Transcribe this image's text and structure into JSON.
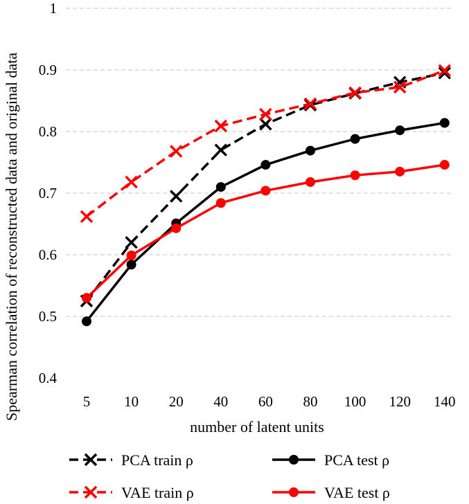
{
  "chart_data": {
    "type": "line",
    "title": "",
    "xlabel": "number of latent units",
    "ylabel": "Spearman correlation of reconstructed data and original data",
    "categories": [
      "5",
      "10",
      "20",
      "40",
      "60",
      "80",
      "100",
      "120",
      "140"
    ],
    "ylim": [
      0.4,
      1.0
    ],
    "yticks": [
      "0.4",
      "0.5",
      "0.6",
      "0.7",
      "0.8",
      "0.9",
      "1"
    ],
    "grid": true,
    "legend_position": "bottom",
    "series": [
      {
        "name": "PCA train ρ",
        "values": [
          0.525,
          0.62,
          0.695,
          0.77,
          0.812,
          0.843,
          0.862,
          0.88,
          0.895
        ],
        "color": "#000000",
        "dash": true,
        "marker": "x"
      },
      {
        "name": "PCA test ρ",
        "values": [
          0.492,
          0.584,
          0.651,
          0.71,
          0.746,
          0.769,
          0.788,
          0.802,
          0.814
        ],
        "color": "#000000",
        "dash": false,
        "marker": "circle"
      },
      {
        "name": "VAE train ρ",
        "values": [
          0.662,
          0.718,
          0.768,
          0.809,
          0.828,
          0.845,
          0.863,
          0.872,
          0.899
        ],
        "color": "#ff0000",
        "dash": true,
        "marker": "x"
      },
      {
        "name": "VAE test ρ",
        "values": [
          0.53,
          0.599,
          0.643,
          0.684,
          0.704,
          0.718,
          0.729,
          0.735,
          0.746
        ],
        "color": "#ff0000",
        "dash": false,
        "marker": "circle"
      }
    ]
  }
}
